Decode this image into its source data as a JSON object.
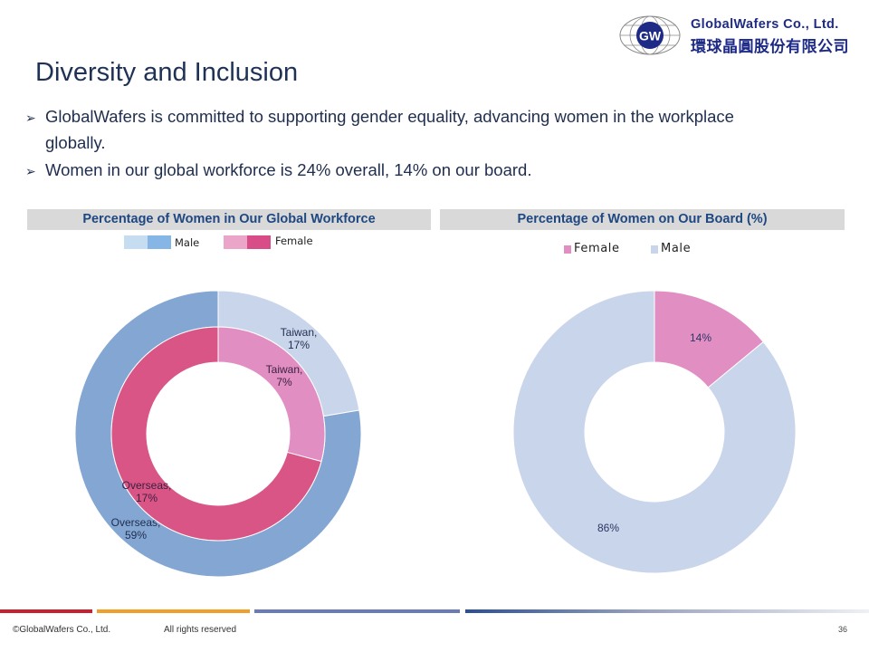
{
  "logo": {
    "company_en": "GlobalWafers Co., Ltd.",
    "company_zh": "環球晶圓股份有限公司",
    "mark": "GW",
    "brand_color": "#1d2a86"
  },
  "title": "Diversity and Inclusion",
  "bullets": [
    {
      "line1": "GlobalWafers is committed to supporting gender equality, advancing women in the workplace",
      "line2": "globally."
    },
    {
      "line1": "Women in our global workforce is 24% overall, 14% on our board."
    }
  ],
  "chart_data": [
    {
      "type": "pie",
      "variant": "nested-donut",
      "title": "Percentage of Women in Our Global Workforce",
      "legend": {
        "position": "top",
        "entries": [
          "Male",
          "Female"
        ]
      },
      "series": [
        {
          "name": "Male",
          "ring": "outer",
          "colors": [
            "#c9d5ea",
            "#84a6d3"
          ],
          "categories": [
            "Taiwan",
            "Overseas"
          ],
          "values": [
            17,
            59
          ],
          "labels": [
            "Taiwan,\n17%",
            "Overseas,\n59%"
          ]
        },
        {
          "name": "Female",
          "ring": "inner",
          "colors": [
            "#e18fc3",
            "#d95585"
          ],
          "categories": [
            "Taiwan",
            "Overseas"
          ],
          "values": [
            7,
            17
          ],
          "labels": [
            "Taiwan,\n7%",
            "Overseas,\n17%"
          ]
        }
      ]
    },
    {
      "type": "pie",
      "variant": "donut",
      "title": "Percentage of Women on Our Board (%)",
      "legend": {
        "position": "top",
        "entries": [
          "Female",
          "Male"
        ]
      },
      "categories": [
        "Female",
        "Male"
      ],
      "values": [
        14,
        86
      ],
      "colors": [
        "#e18fc3",
        "#c9d5ea"
      ],
      "labels": [
        "14%",
        "86%"
      ]
    }
  ],
  "footer": {
    "copyright": "©GlobalWafers Co., Ltd.",
    "rights": "All rights reserved",
    "page_number": "36",
    "bar_colors": [
      "#c8202e",
      "#f0a028",
      "#6b7bb5",
      "#2b4f94"
    ]
  }
}
